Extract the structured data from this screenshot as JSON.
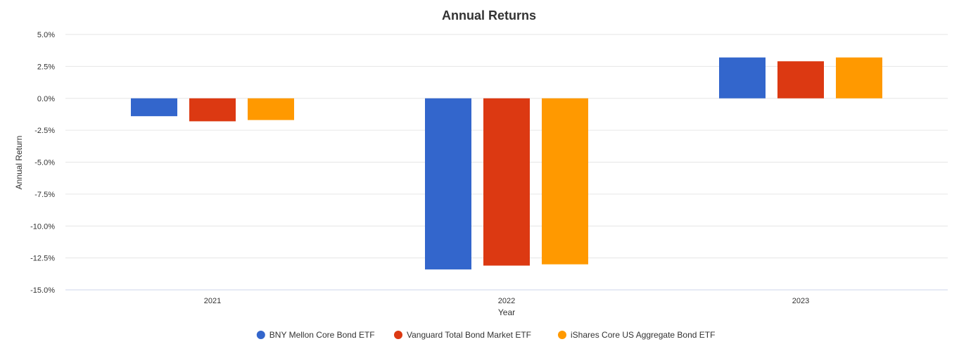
{
  "chart_data": {
    "type": "bar",
    "title": "Annual Returns",
    "xlabel": "Year",
    "ylabel": "Annual Return",
    "categories": [
      "2021",
      "2022",
      "2023"
    ],
    "y_ticks": [
      "5.0%",
      "2.5%",
      "0.0%",
      "-2.5%",
      "-5.0%",
      "-7.5%",
      "-10.0%",
      "-12.5%",
      "-15.0%"
    ],
    "y_tick_values": [
      5,
      2.5,
      0,
      -2.5,
      -5,
      -7.5,
      -10,
      -12.5,
      -15
    ],
    "ylim": [
      -15,
      5
    ],
    "grid": true,
    "legend_position": "bottom",
    "series": [
      {
        "name": "BNY Mellon Core Bond ETF",
        "color": "#3366cc",
        "values": [
          -1.4,
          -13.4,
          3.2
        ]
      },
      {
        "name": "Vanguard Total Bond Market ETF",
        "color": "#dc3912",
        "values": [
          -1.8,
          -13.1,
          2.9
        ]
      },
      {
        "name": "iShares Core US Aggregate Bond ETF",
        "color": "#ff9900",
        "values": [
          -1.7,
          -13.0,
          3.2
        ]
      }
    ]
  }
}
